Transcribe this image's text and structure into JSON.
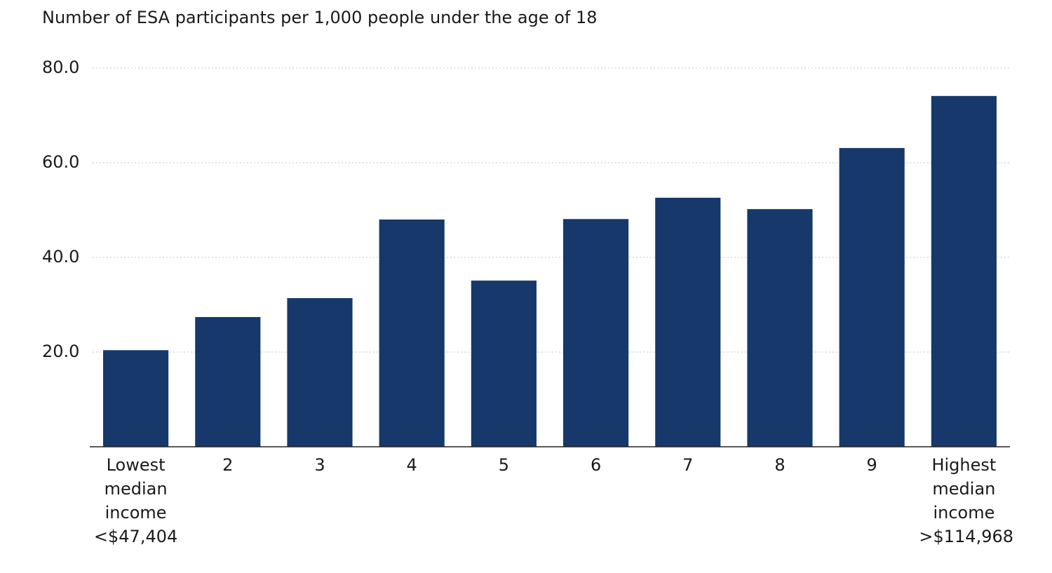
{
  "chart_data": {
    "type": "bar",
    "title": "Number of ESA participants per 1,000 people under the age of 18",
    "categories": [
      "Lowest median income <$47,404",
      "2",
      "3",
      "4",
      "5",
      "6",
      "7",
      "8",
      "9",
      "Highest median income >$114,968"
    ],
    "values": [
      20.4,
      27.4,
      31.4,
      48.0,
      35.1,
      48.1,
      52.6,
      50.2,
      63.1,
      74.1
    ],
    "color": "#16386b",
    "ylim": [
      0,
      80
    ],
    "yticks": [
      {
        "value": 20,
        "label": "20.0"
      },
      {
        "value": 40,
        "label": "40.0"
      },
      {
        "value": 60,
        "label": "60.0"
      },
      {
        "value": 80,
        "label": "80.0"
      }
    ],
    "grid": true
  }
}
